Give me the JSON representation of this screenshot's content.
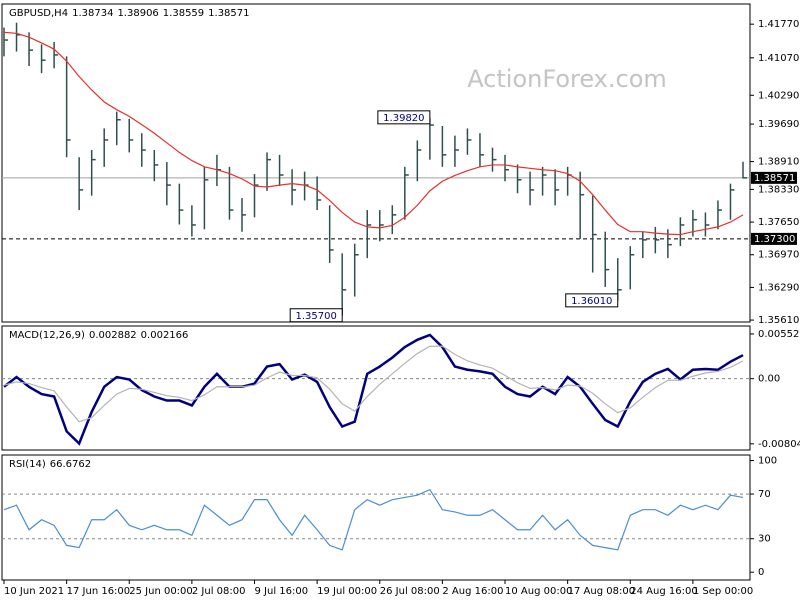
{
  "chart_data": [
    {
      "type": "ohlc",
      "header": {
        "symbol": "GBPUSD,H4",
        "ohlc": [
          1.38734,
          1.38906,
          1.38559,
          1.38571
        ]
      },
      "watermark": "ActionForex.com",
      "color": "#2f4f4f",
      "high": [
        1.417,
        1.418,
        1.416,
        1.4135,
        1.414,
        1.411,
        1.39,
        1.3915,
        1.396,
        1.3995,
        1.398,
        1.395,
        1.3915,
        1.389,
        1.3845,
        1.38,
        1.388,
        1.3905,
        1.388,
        1.3815,
        1.3865,
        1.391,
        1.3905,
        1.3875,
        1.387,
        1.386,
        1.38,
        1.37,
        1.372,
        1.379,
        1.379,
        1.38,
        1.388,
        1.3935,
        1.3982,
        1.3965,
        1.3945,
        1.396,
        1.395,
        1.392,
        1.3905,
        1.3885,
        1.387,
        1.388,
        1.3875,
        1.388,
        1.387,
        1.382,
        1.3745,
        1.369,
        1.3715,
        1.3745,
        1.3755,
        1.375,
        1.3775,
        1.379,
        1.3785,
        1.381,
        1.3845,
        1.38906
      ],
      "low": [
        1.411,
        1.412,
        1.409,
        1.4075,
        1.4085,
        1.39,
        1.379,
        1.382,
        1.388,
        1.3925,
        1.391,
        1.388,
        1.385,
        1.38,
        1.376,
        1.3735,
        1.375,
        1.384,
        1.377,
        1.3745,
        1.3775,
        1.383,
        1.384,
        1.38,
        1.381,
        1.379,
        1.368,
        1.357,
        1.361,
        1.369,
        1.3725,
        1.374,
        1.377,
        1.385,
        1.3895,
        1.388,
        1.388,
        1.3905,
        1.388,
        1.387,
        1.385,
        1.3825,
        1.38,
        1.382,
        1.38,
        1.382,
        1.373,
        1.366,
        1.363,
        1.3601,
        1.3625,
        1.369,
        1.37,
        1.369,
        1.3715,
        1.3735,
        1.3735,
        1.375,
        1.377,
        1.38559
      ],
      "close": [
        1.4144,
        1.4155,
        1.4123,
        1.4102,
        1.4113,
        1.3936,
        1.3832,
        1.3895,
        1.3936,
        1.3978,
        1.3936,
        1.3915,
        1.3884,
        1.3842,
        1.379,
        1.3759,
        1.3853,
        1.3874,
        1.379,
        1.378,
        1.3842,
        1.3895,
        1.3863,
        1.3832,
        1.3842,
        1.3811,
        1.3707,
        1.3624,
        1.3697,
        1.3759,
        1.3759,
        1.378,
        1.3863,
        1.3915,
        1.3967,
        1.3905,
        1.3915,
        1.3936,
        1.3905,
        1.3895,
        1.3874,
        1.3853,
        1.3832,
        1.3863,
        1.3832,
        1.3863,
        1.3822,
        1.3739,
        1.3666,
        1.3624,
        1.3697,
        1.3728,
        1.3728,
        1.3718,
        1.3759,
        1.377,
        1.3759,
        1.379,
        1.3832,
        1.38571
      ],
      "series": [
        {
          "color": "#e8302a",
          "values": [
            1.416,
            1.4158,
            1.415,
            1.4138,
            1.4125,
            1.41,
            1.4068,
            1.404,
            1.4015,
            1.3999,
            1.3985,
            1.3968,
            1.395,
            1.393,
            1.391,
            1.3893,
            1.388,
            1.3874,
            1.3866,
            1.3855,
            1.384,
            1.3838,
            1.3842,
            1.3845,
            1.3842,
            1.3832,
            1.381,
            1.3785,
            1.3765,
            1.3755,
            1.3753,
            1.3758,
            1.3775,
            1.38,
            1.383,
            1.385,
            1.3862,
            1.3872,
            1.388,
            1.3884,
            1.3884,
            1.388,
            1.3877,
            1.3874,
            1.3872,
            1.3866,
            1.385,
            1.3822,
            1.379,
            1.376,
            1.3745,
            1.3745,
            1.3742,
            1.374,
            1.3739,
            1.3745,
            1.375,
            1.3755,
            1.3765,
            1.378
          ]
        }
      ],
      "price_lines": [
        {
          "value": 1.38571,
          "label": "1.38571",
          "dashed": false
        },
        {
          "value": 1.373,
          "label": "1.37300",
          "dashed": true
        }
      ],
      "annotations": [
        {
          "value": 1.3982,
          "label": "1.39820"
        },
        {
          "value": 1.357,
          "label": "1.35700"
        },
        {
          "value": 1.3601,
          "label": "1.36010"
        }
      ],
      "ylim": [
        1.3557,
        1.4219
      ],
      "yticks": [
        {
          "value": 1.4177,
          "label": "1.41770"
        },
        {
          "value": 1.4107,
          "label": "1.41070"
        },
        {
          "value": 1.4029,
          "label": "1.40290"
        },
        {
          "value": 1.3969,
          "label": "1.39690"
        },
        {
          "value": 1.3891,
          "label": "1.38910"
        },
        {
          "value": 1.3833,
          "label": "1.38330"
        },
        {
          "value": 1.3765,
          "label": "1.37650"
        },
        {
          "value": 1.3697,
          "label": "1.36970"
        },
        {
          "value": 1.3629,
          "label": "1.36290"
        },
        {
          "value": 1.3561,
          "label": "1.35610"
        }
      ],
      "grid": false
    },
    {
      "type": "line",
      "indicator": "MACD(12,26,9)",
      "readings": [
        0.002882,
        0.002166
      ],
      "series": [
        {
          "color": "#000080",
          "values": [
            -0.001,
            0.0002,
            -0.001,
            -0.0019,
            -0.0022,
            -0.0065,
            -0.008,
            -0.0041,
            -0.001,
            0.0002,
            -0.0001,
            -0.0014,
            -0.0022,
            -0.0027,
            -0.0027,
            -0.0033,
            -0.001,
            0.0006,
            -0.001,
            -0.001,
            -0.0006,
            0.0015,
            0.0018,
            -0.0001,
            0.0005,
            -0.0004,
            -0.0035,
            -0.0059,
            -0.0053,
            0.0006,
            0.0015,
            0.0026,
            0.0039,
            0.0048,
            0.0054,
            0.0039,
            0.0015,
            0.0011,
            0.0009,
            0.0006,
            -0.001,
            -0.0019,
            -0.0022,
            -0.001,
            -0.0019,
            0.0002,
            -0.001,
            -0.0031,
            -0.0051,
            -0.0059,
            -0.0028,
            -0.0004,
            0.0006,
            0.0012,
            -0.0001,
            0.0011,
            0.0012,
            0.0011,
            0.0021,
            0.0029
          ]
        },
        {
          "color": "#b4b4b4",
          "values": [
            -0.0008,
            -0.0004,
            -0.0006,
            -0.0011,
            -0.0015,
            -0.0035,
            -0.0053,
            -0.0048,
            -0.0033,
            -0.0019,
            -0.0012,
            -0.0013,
            -0.0017,
            -0.0021,
            -0.0023,
            -0.0027,
            -0.002,
            -0.001,
            -0.001,
            -0.001,
            -0.0008,
            0.0001,
            0.0008,
            0.0004,
            0.0004,
            0.0001,
            -0.0013,
            -0.0031,
            -0.004,
            -0.0022,
            -0.0007,
            0.0006,
            0.0019,
            0.0031,
            0.004,
            0.004,
            0.003,
            0.0022,
            0.0017,
            0.0013,
            0.0004,
            -0.0005,
            -0.0012,
            -0.0011,
            -0.0014,
            -0.0008,
            -0.0009,
            -0.0018,
            -0.0031,
            -0.0042,
            -0.0036,
            -0.0023,
            -0.0011,
            -0.0002,
            -0.0002,
            0.0003,
            0.0007,
            0.0009,
            0.0014,
            0.0022
          ]
        }
      ],
      "ylim": [
        -0.0088,
        0.0065
      ],
      "yticks": [
        0.00552,
        {
          "value": 0,
          "label": "0.00"
        },
        -0.00804
      ],
      "grid": true
    },
    {
      "type": "line",
      "indicator": "RSI(14)",
      "readings": [
        66.6762
      ],
      "series": [
        {
          "color": "#4a8fd0",
          "values": [
            56,
            60,
            38,
            47,
            42,
            24,
            22,
            47,
            47,
            56,
            42,
            38,
            42,
            38,
            38,
            33,
            60,
            51,
            42,
            47,
            65,
            65,
            47,
            33,
            51,
            38,
            24,
            20,
            56,
            65,
            60,
            65,
            67,
            69,
            74,
            56,
            54,
            51,
            51,
            56,
            47,
            38,
            38,
            51,
            38,
            47,
            33,
            24,
            22,
            20,
            51,
            56,
            56,
            51,
            60,
            56,
            60,
            56,
            69,
            67
          ]
        }
      ],
      "ylim": [
        -7,
        105
      ],
      "yticks": [
        100,
        70,
        30,
        0
      ],
      "grid": true,
      "categories": [
        "10 Jun 2021",
        null,
        null,
        null,
        null,
        "17 Jun 16:00",
        null,
        null,
        null,
        null,
        "25 Jun 00:00",
        null,
        null,
        null,
        null,
        "2 Jul 08:00",
        null,
        null,
        null,
        null,
        "9 Jul 16:00",
        null,
        null,
        null,
        null,
        "19 Jul 00:00",
        null,
        null,
        null,
        null,
        "26 Jul 08:00",
        null,
        null,
        null,
        null,
        "2 Aug 16:00",
        null,
        null,
        null,
        null,
        "10 Aug 00:00",
        null,
        null,
        null,
        null,
        "17 Aug 08:00",
        null,
        null,
        null,
        null,
        "24 Aug 16:00",
        null,
        null,
        null,
        null,
        "1 Sep 00:00",
        null,
        null,
        null,
        null
      ]
    }
  ]
}
